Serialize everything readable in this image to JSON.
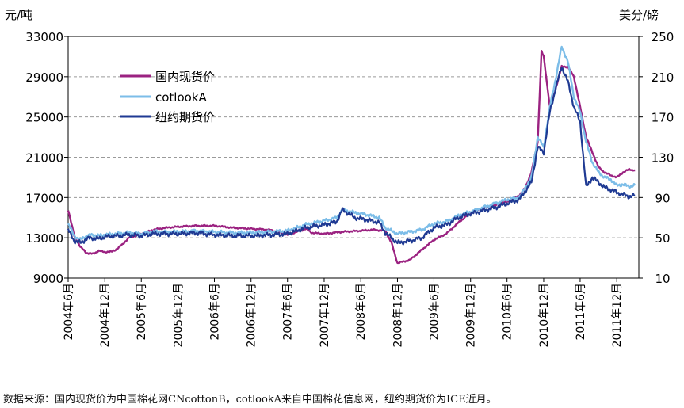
{
  "chart_data": {
    "type": "line",
    "y_left_label": "元/吨",
    "y_right_label": "美分/磅",
    "y_left_ticks": [
      9000,
      13000,
      17000,
      21000,
      25000,
      29000,
      33000
    ],
    "y_right_ticks": [
      10,
      50,
      90,
      130,
      170,
      210,
      250
    ],
    "ylim_left": [
      9000,
      33000
    ],
    "ylim_right": [
      10,
      250
    ],
    "x_ticks": [
      "2004年6月",
      "2004年12月",
      "2005年6月",
      "2005年12月",
      "2006年6月",
      "2006年12月",
      "2007年6月",
      "2007年12月",
      "2008年6月",
      "2008年12月",
      "2009年6月",
      "2009年12月",
      "2010年6月",
      "2010年12月",
      "2011年6月",
      "2011年12月"
    ],
    "grid": "horizontal dashed",
    "legend_position": "upper-left",
    "series": [
      {
        "name": "国内现货价",
        "axis": "left",
        "color": "#9b2281",
        "x": [
          "2004-06-01",
          "2004-07-01",
          "2004-08-01",
          "2004-09-01",
          "2004-10-01",
          "2004-11-01",
          "2004-12-01",
          "2005-01-01",
          "2005-02-01",
          "2005-03-01",
          "2005-04-01",
          "2005-05-01",
          "2005-06-01",
          "2005-08-01",
          "2005-10-01",
          "2005-12-01",
          "2006-03-01",
          "2006-06-01",
          "2006-09-01",
          "2006-12-01",
          "2007-03-01",
          "2007-06-01",
          "2007-08-01",
          "2007-09-01",
          "2007-10-01",
          "2007-12-01",
          "2008-03-01",
          "2008-06-01",
          "2008-08-01",
          "2008-10-01",
          "2008-11-01",
          "2008-12-01",
          "2009-02-01",
          "2009-04-01",
          "2009-06-01",
          "2009-08-01",
          "2009-10-01",
          "2009-12-01",
          "2010-02-01",
          "2010-04-01",
          "2010-06-01",
          "2010-08-01",
          "2010-09-01",
          "2010-10-01",
          "2010-11-01",
          "2010-11-20",
          "2010-12-01",
          "2011-01-01",
          "2011-02-01",
          "2011-03-01",
          "2011-04-01",
          "2011-05-01",
          "2011-06-01",
          "2011-07-01",
          "2011-08-01",
          "2011-09-01",
          "2011-10-01",
          "2011-11-01",
          "2011-12-01",
          "2012-01-01",
          "2012-02-01",
          "2012-03-01"
        ],
        "values": [
          15800,
          13200,
          12100,
          11500,
          11400,
          11700,
          11600,
          11600,
          11900,
          12400,
          13000,
          13200,
          13400,
          13800,
          14000,
          14100,
          14200,
          14200,
          14000,
          13900,
          13800,
          13300,
          13700,
          13900,
          13500,
          13400,
          13600,
          13700,
          13800,
          13700,
          12500,
          10500,
          10800,
          11800,
          12800,
          13400,
          14500,
          15500,
          16000,
          16200,
          16600,
          17200,
          18000,
          19500,
          22500,
          31500,
          31000,
          26000,
          28000,
          30000,
          30000,
          29000,
          26000,
          23000,
          21500,
          20000,
          19500,
          19200,
          19000,
          19500,
          19800,
          19700
        ]
      },
      {
        "name": "cotlookA",
        "axis": "right",
        "color": "#7cbde8",
        "x": [
          "2004-06-01",
          "2004-07-01",
          "2004-08-01",
          "2004-09-01",
          "2004-10-01",
          "2004-11-01",
          "2004-12-01",
          "2005-02-01",
          "2005-04-01",
          "2005-06-01",
          "2005-08-01",
          "2005-10-01",
          "2005-12-01",
          "2006-03-01",
          "2006-06-01",
          "2006-09-01",
          "2006-12-01",
          "2007-03-01",
          "2007-06-01",
          "2007-09-01",
          "2007-12-01",
          "2008-02-01",
          "2008-03-01",
          "2008-05-01",
          "2008-07-01",
          "2008-09-01",
          "2008-10-01",
          "2008-12-01",
          "2009-02-01",
          "2009-04-01",
          "2009-06-01",
          "2009-08-01",
          "2009-10-01",
          "2009-12-01",
          "2010-02-01",
          "2010-04-01",
          "2010-06-01",
          "2010-08-01",
          "2010-10-01",
          "2010-11-01",
          "2010-12-01",
          "2011-01-01",
          "2011-02-01",
          "2011-03-01",
          "2011-04-01",
          "2011-05-01",
          "2011-06-01",
          "2011-07-01",
          "2011-08-01",
          "2011-09-01",
          "2011-10-01",
          "2011-11-01",
          "2011-12-01",
          "2012-01-01",
          "2012-02-01",
          "2012-03-01"
        ],
        "values": [
          64,
          52,
          48,
          52,
          53,
          52,
          53,
          54,
          55,
          54,
          56,
          56,
          56,
          57,
          56,
          55,
          55,
          56,
          57,
          63,
          67,
          70,
          78,
          75,
          73,
          70,
          60,
          54,
          56,
          58,
          64,
          66,
          72,
          76,
          80,
          84,
          88,
          90,
          110,
          150,
          140,
          180,
          210,
          240,
          225,
          190,
          175,
          145,
          125,
          115,
          110,
          108,
          102,
          103,
          101,
          102
        ]
      },
      {
        "name": "纽约期货价",
        "axis": "right",
        "color": "#1f3a93",
        "x": [
          "2004-06-01",
          "2004-07-01",
          "2004-08-01",
          "2004-09-01",
          "2004-10-01",
          "2004-11-01",
          "2004-12-01",
          "2005-02-01",
          "2005-04-01",
          "2005-06-01",
          "2005-08-01",
          "2005-10-01",
          "2005-12-01",
          "2006-03-01",
          "2006-06-01",
          "2006-09-01",
          "2006-12-01",
          "2007-03-01",
          "2007-06-01",
          "2007-09-01",
          "2007-12-01",
          "2008-02-01",
          "2008-03-01",
          "2008-05-01",
          "2008-07-01",
          "2008-09-01",
          "2008-10-01",
          "2008-12-01",
          "2009-02-01",
          "2009-04-01",
          "2009-06-01",
          "2009-08-01",
          "2009-10-01",
          "2009-12-01",
          "2010-02-01",
          "2010-04-01",
          "2010-06-01",
          "2010-08-01",
          "2010-10-01",
          "2010-11-01",
          "2010-12-01",
          "2011-01-01",
          "2011-02-01",
          "2011-03-01",
          "2011-04-01",
          "2011-05-01",
          "2011-06-01",
          "2011-07-01",
          "2011-08-01",
          "2011-09-01",
          "2011-10-01",
          "2011-11-01",
          "2011-12-01",
          "2012-01-01",
          "2012-02-01",
          "2012-03-01"
        ],
        "values": [
          58,
          47,
          45,
          49,
          50,
          49,
          51,
          52,
          53,
          52,
          54,
          54,
          54,
          55,
          53,
          52,
          52,
          53,
          54,
          60,
          63,
          66,
          78,
          70,
          68,
          65,
          55,
          45,
          47,
          50,
          60,
          63,
          70,
          74,
          77,
          80,
          84,
          88,
          105,
          140,
          135,
          175,
          200,
          220,
          205,
          180,
          165,
          100,
          110,
          105,
          100,
          98,
          95,
          93,
          91,
          92
        ]
      }
    ]
  },
  "source_note": "数据来源：国内现货价为中国棉花网CNcottonB，cotlookA来自中国棉花信息网，纽约期货价为ICE近月。"
}
